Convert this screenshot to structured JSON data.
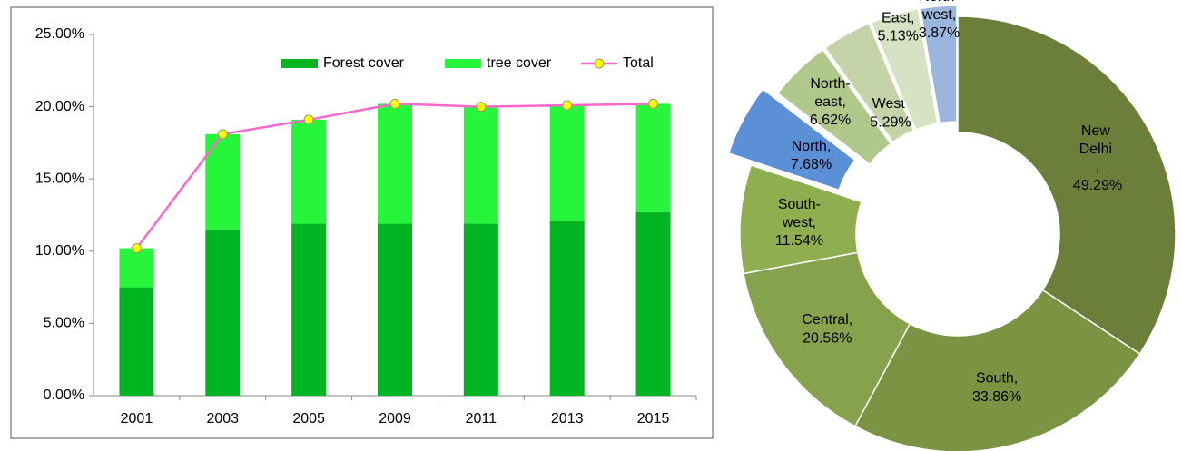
{
  "chart_data": [
    {
      "type": "bar",
      "categories": [
        "2001",
        "2003",
        "2005",
        "2009",
        "2011",
        "2013",
        "2015"
      ],
      "series": [
        {
          "name": "Forest cover",
          "color": "#00b521",
          "values": [
            7.5,
            11.5,
            11.9,
            11.9,
            11.9,
            12.1,
            12.7
          ]
        },
        {
          "name": "tree cover",
          "color": "#27f53c",
          "values": [
            2.7,
            6.6,
            7.2,
            8.3,
            8.1,
            8.0,
            7.5
          ]
        },
        {
          "name": "Total",
          "type": "line",
          "color": "#ff66cc",
          "marker_color": "#ffff00",
          "values": [
            10.2,
            18.1,
            19.1,
            20.2,
            20.0,
            20.1,
            20.2
          ]
        }
      ],
      "stacked": true,
      "ylim": [
        0,
        25
      ],
      "yticks": [
        {
          "value": 0,
          "label": "0.00%"
        },
        {
          "value": 5,
          "label": "5.00%"
        },
        {
          "value": 10,
          "label": "10.00%"
        },
        {
          "value": 15,
          "label": "15.00%"
        },
        {
          "value": 20,
          "label": "20.00%"
        },
        {
          "value": 25,
          "label": "25.00%"
        }
      ],
      "grid": false,
      "legend": "top-right"
    },
    {
      "type": "donut",
      "categories": [
        "New Delhi ,",
        "South,",
        "Central,",
        "South-west,",
        "North,",
        "North-east,",
        "West,",
        "East,",
        "North-west,"
      ],
      "values": [
        49.29,
        33.86,
        20.56,
        11.54,
        7.68,
        6.62,
        5.29,
        5.13,
        3.87
      ],
      "value_labels": [
        "49.29%",
        "33.86%",
        "20.56%",
        "11.54%",
        "7.68%",
        "6.62%",
        "5.29%",
        "5.13%",
        "3.87%"
      ],
      "colors": [
        "#6b7f3a",
        "#7a9444",
        "#86a24c",
        "#8fae50",
        "#5b8fd6",
        "#b1c88c",
        "#c4d4a8",
        "#d7e2c4",
        "#9ab6de"
      ]
    }
  ]
}
